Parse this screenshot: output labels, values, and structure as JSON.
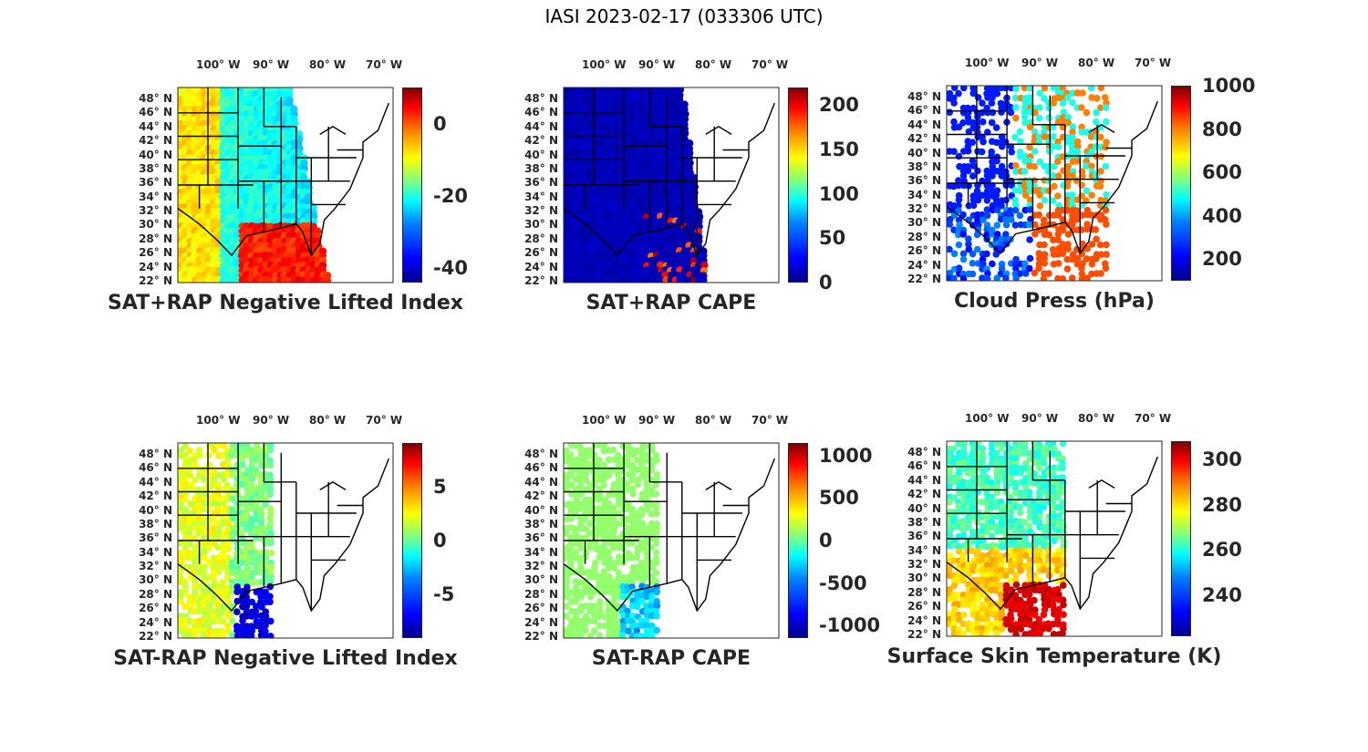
{
  "title": "IASI 2023-02-17 (033306 UTC)",
  "lon_labels": [
    "100° W",
    "90° W",
    "80° W",
    "70° W"
  ],
  "lat_labels": [
    "48° N",
    "46° N",
    "44° N",
    "42° N",
    "40° N",
    "38° N",
    "36° N",
    "34° N",
    "32° N",
    "30° N",
    "28° N",
    "26° N",
    "24° N",
    "22° N"
  ],
  "colormap": [
    "#00008f",
    "#0000ff",
    "#0080ff",
    "#00ffff",
    "#80ff80",
    "#ffff00",
    "#ff8000",
    "#ff0000",
    "#800000"
  ],
  "panels": [
    {
      "caption": "SAT+RAP Negative Lifted Index",
      "colorbar_ticks": [
        "0",
        "-20",
        "-40"
      ],
      "colorbar_range": [
        -44,
        10
      ],
      "tick_values": [
        0,
        -20,
        -40
      ],
      "fill": "lifted"
    },
    {
      "caption": "SAT+RAP CAPE",
      "colorbar_ticks": [
        "200",
        "150",
        "100",
        "50",
        "0"
      ],
      "colorbar_range": [
        0,
        220
      ],
      "tick_values": [
        200,
        150,
        100,
        50,
        0
      ],
      "fill": "cape"
    },
    {
      "caption": "Cloud Press (hPa)",
      "colorbar_ticks": [
        "1000",
        "800",
        "600",
        "400",
        "200"
      ],
      "colorbar_range": [
        100,
        1000
      ],
      "tick_values": [
        1000,
        800,
        600,
        400,
        200
      ],
      "fill": "cloud"
    },
    {
      "caption": "SAT-RAP Negative Lifted Index",
      "colorbar_ticks": [
        "5",
        "0",
        "-5"
      ],
      "colorbar_range": [
        -9,
        9
      ],
      "tick_values": [
        5,
        0,
        -5
      ],
      "fill": "dlifted"
    },
    {
      "caption": "SAT-RAP CAPE",
      "colorbar_ticks": [
        "1000",
        "500",
        "0",
        "-500",
        "-1000"
      ],
      "colorbar_range": [
        -1150,
        1150
      ],
      "tick_values": [
        1000,
        500,
        0,
        -500,
        -1000
      ],
      "fill": "dcape"
    },
    {
      "caption": "Surface Skin Temperature (K)",
      "colorbar_ticks": [
        "300",
        "280",
        "260",
        "240"
      ],
      "colorbar_range": [
        222,
        308
      ],
      "tick_values": [
        300,
        280,
        260,
        240
      ],
      "fill": "skin"
    }
  ]
}
